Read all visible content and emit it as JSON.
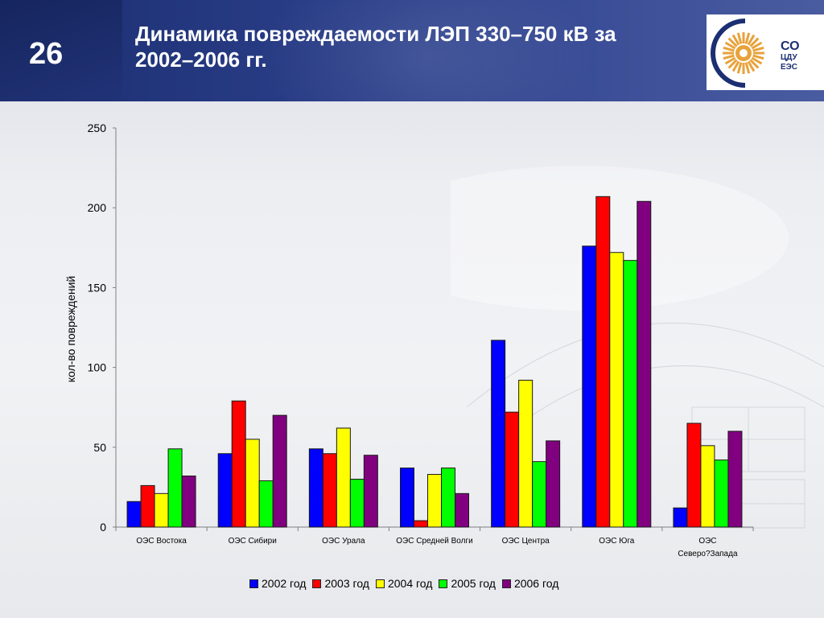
{
  "slide": {
    "number": "26",
    "title_line1": "Динамика повреждаемости ЛЭП 330–750 кВ за",
    "title_line2": "2002–2006 гг.",
    "logo_text": [
      "СО",
      "ЦДУ",
      "ЕЭС"
    ]
  },
  "colors": {
    "header": "#2b3f8a",
    "logo_ring": "#1c2f72",
    "logo_sun": "#e8a23a"
  },
  "chart_data": {
    "type": "bar",
    "title": "",
    "xlabel": "",
    "ylabel": "кол-во повреждений",
    "ylim": [
      0,
      250
    ],
    "yticks": [
      0,
      50,
      100,
      150,
      200,
      250
    ],
    "grid": false,
    "legend_position": "bottom",
    "categories": [
      [
        "ОЭС Востока"
      ],
      [
        "ОЭС Сибири"
      ],
      [
        "ОЭС Урала"
      ],
      [
        "ОЭС Средней Волги"
      ],
      [
        "ОЭС Центра"
      ],
      [
        "ОЭС Юга"
      ],
      [
        "ОЭС",
        "Северо?Запада"
      ]
    ],
    "series": [
      {
        "name": "2002 год",
        "color": "#0000ff",
        "values": [
          16,
          46,
          49,
          37,
          117,
          176,
          12
        ]
      },
      {
        "name": "2003 год",
        "color": "#ff0000",
        "values": [
          26,
          79,
          46,
          4,
          72,
          207,
          65
        ]
      },
      {
        "name": "2004 год",
        "color": "#ffff00",
        "values": [
          21,
          55,
          62,
          33,
          92,
          172,
          51
        ]
      },
      {
        "name": "2005 год",
        "color": "#00ff00",
        "values": [
          49,
          29,
          30,
          37,
          41,
          167,
          42
        ]
      },
      {
        "name": "2006 год",
        "color": "#800080",
        "values": [
          32,
          70,
          45,
          21,
          54,
          204,
          60
        ]
      }
    ]
  }
}
